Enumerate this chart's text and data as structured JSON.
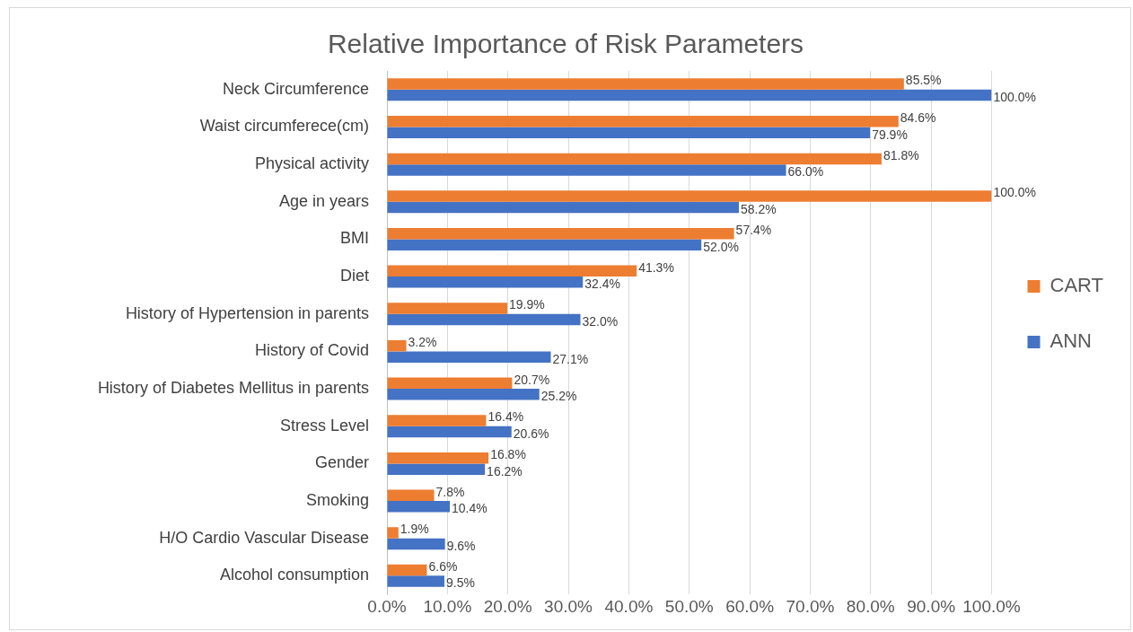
{
  "chart_data": {
    "type": "bar",
    "orientation": "horizontal",
    "title": "Relative Importance of Risk Parameters",
    "categories": [
      "Neck Circumference",
      "Waist circumferece(cm)",
      "Physical activity",
      "Age in years",
      "BMI",
      "Diet",
      "History of Hypertension in parents",
      "History of Covid",
      "History of Diabetes Mellitus in parents",
      "Stress Level",
      "Gender",
      "Smoking",
      "H/O Cardio Vascular Disease",
      "Alcohol consumption"
    ],
    "series": [
      {
        "name": "CART",
        "color": "#ed7d31",
        "values": [
          85.5,
          84.6,
          81.8,
          100,
          57.4,
          41.3,
          19.9,
          3.2,
          20.7,
          16.4,
          16.8,
          7.8,
          1.9,
          6.6
        ],
        "value_labels": [
          "85.5%",
          "84.6%",
          "81.8%",
          "100.0%",
          "57.4%",
          "41.3%",
          "19.9%",
          "3.2%",
          "20.7%",
          "16.4%",
          "16.8%",
          "7.8%",
          "1.9%",
          "6.6%"
        ]
      },
      {
        "name": "ANN",
        "color": "#4472c4",
        "values": [
          100,
          79.9,
          66.0,
          58.2,
          52.0,
          32.4,
          32.0,
          27.1,
          25.2,
          20.6,
          16.2,
          10.4,
          9.6,
          9.5
        ],
        "value_labels": [
          "100.0%",
          "79.9%",
          "66.0%",
          "58.2%",
          "52.0%",
          "32.4%",
          "32.0%",
          "27.1%",
          "25.2%",
          "20.6%",
          "16.2%",
          "10.4%",
          "9.6%",
          "9.5%"
        ]
      }
    ],
    "xlim": [
      0,
      100
    ],
    "xticks": [
      {
        "value": 0,
        "label": "0.0%"
      },
      {
        "value": 10,
        "label": "10.0%"
      },
      {
        "value": 20,
        "label": "20.0%"
      },
      {
        "value": 30,
        "label": "30.0%"
      },
      {
        "value": 40,
        "label": "40.0%"
      },
      {
        "value": 50,
        "label": "50.0%"
      },
      {
        "value": 60,
        "label": "60.0%"
      },
      {
        "value": 70,
        "label": "70.0%"
      },
      {
        "value": 80,
        "label": "80.0%"
      },
      {
        "value": 90,
        "label": "90.0%"
      },
      {
        "value": 100,
        "label": "100.0%"
      }
    ],
    "grid": "x",
    "legend": "right"
  }
}
